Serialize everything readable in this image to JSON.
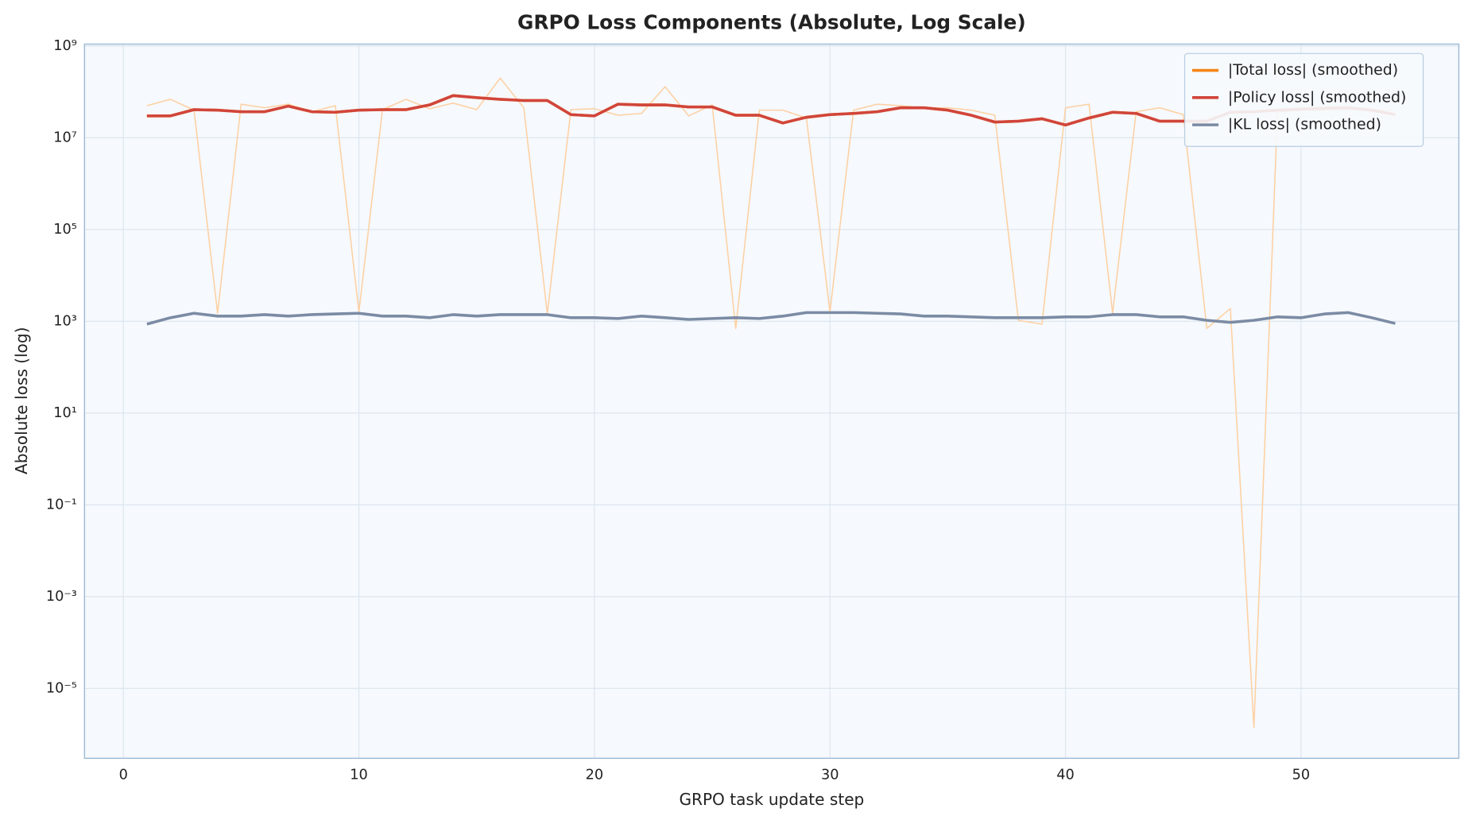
{
  "chart_data": {
    "type": "line",
    "title": "GRPO Loss Components (Absolute, Log Scale)",
    "x_label": "GRPO task update step",
    "y_label": "Absolute loss (log)",
    "yscale": "log",
    "grid": true,
    "legend": "upper right",
    "xlim": [
      -1.65,
      56.7
    ],
    "xticks": [
      0,
      10,
      20,
      30,
      40,
      50
    ],
    "ylim": [
      3e-07,
      1100000000.0
    ],
    "yticks": [
      {
        "value": 1e-05,
        "label": "10⁻⁵"
      },
      {
        "value": 0.001,
        "label": "10⁻³"
      },
      {
        "value": 0.1,
        "label": "10⁻¹"
      },
      {
        "value": 10,
        "label": "10¹"
      },
      {
        "value": 1000,
        "label": "10³"
      },
      {
        "value": 100000,
        "label": "10⁵"
      },
      {
        "value": 10000000,
        "label": "10⁷"
      },
      {
        "value": 1000000000,
        "label": "10⁹"
      }
    ],
    "x": [
      1,
      2,
      3,
      4,
      5,
      6,
      7,
      8,
      9,
      10,
      11,
      12,
      13,
      14,
      15,
      16,
      17,
      18,
      19,
      20,
      21,
      22,
      23,
      24,
      25,
      26,
      27,
      28,
      29,
      30,
      31,
      32,
      33,
      34,
      35,
      36,
      37,
      38,
      39,
      40,
      41,
      42,
      43,
      44,
      45,
      46,
      47,
      48,
      49,
      50,
      51,
      52,
      53,
      54
    ],
    "series": [
      {
        "color": "#fdd0a2",
        "width": 1.3,
        "values": [
          50000000.0,
          69000000.0,
          40000000.0,
          1500,
          54000000.0,
          45000000.0,
          54000000.0,
          37000000.0,
          50000000.0,
          1600,
          41000000.0,
          69000000.0,
          43000000.0,
          57000000.0,
          41000000.0,
          200000000.0,
          45000000.0,
          1450,
          41000000.0,
          43000000.0,
          31000000.0,
          34000000.0,
          130000000.0,
          30000000.0,
          52000000.0,
          700,
          40000000.0,
          40000000.0,
          27000000.0,
          1600,
          40000000.0,
          54000000.0,
          50000000.0,
          45000000.0,
          45000000.0,
          40000000.0,
          31000000.0,
          1050,
          870,
          45000000.0,
          54000000.0,
          1500,
          37000000.0,
          45000000.0,
          32000000.0,
          700,
          1900,
          1.4e-06,
          36000000.0,
          40000000.0,
          40000000.0,
          42000000.0,
          40000000.0,
          40000000.0
        ]
      },
      {
        "name": "|Total loss| (smoothed)",
        "color": "#f58518",
        "width": 3,
        "values": [
          30000000.0,
          30000000.0,
          41000000.0,
          40000000.0,
          37000000.0,
          37000000.0,
          49000000.0,
          37000000.0,
          36000000.0,
          40000000.0,
          41000000.0,
          41000000.0,
          52000000.0,
          83000000.0,
          75000000.0,
          69000000.0,
          65000000.0,
          65000000.0,
          32000000.0,
          30000000.0,
          54000000.0,
          52000000.0,
          52000000.0,
          47000000.0,
          47000000.0,
          31000000.0,
          31000000.0,
          21000000.0,
          28000000.0,
          32000000.0,
          34000000.0,
          37000000.0,
          45000000.0,
          45000000.0,
          40000000.0,
          31000000.0,
          22000000.0,
          23000000.0,
          26000000.0,
          19000000.0,
          27000000.0,
          36000000.0,
          34000000.0,
          23000000.0,
          23000000.0,
          23000000.0,
          36000000.0,
          37000000.0,
          40000000.0,
          42000000.0,
          44000000.0,
          45000000.0,
          40000000.0,
          32000000.0
        ]
      },
      {
        "name": "|Policy loss| (smoothed)",
        "color": "#d1453b",
        "width": 3,
        "values": [
          30000000.0,
          30000000.0,
          41000000.0,
          40000000.0,
          37000000.0,
          37000000.0,
          49000000.0,
          37000000.0,
          36000000.0,
          40000000.0,
          41000000.0,
          41000000.0,
          52000000.0,
          83000000.0,
          75000000.0,
          69000000.0,
          65000000.0,
          65000000.0,
          32000000.0,
          30000000.0,
          54000000.0,
          52000000.0,
          52000000.0,
          47000000.0,
          47000000.0,
          31000000.0,
          31000000.0,
          21000000.0,
          28000000.0,
          32000000.0,
          34000000.0,
          37000000.0,
          45000000.0,
          45000000.0,
          40000000.0,
          31000000.0,
          22000000.0,
          23000000.0,
          26000000.0,
          19000000.0,
          27000000.0,
          36000000.0,
          34000000.0,
          23000000.0,
          23000000.0,
          23000000.0,
          36000000.0,
          37000000.0,
          40000000.0,
          42000000.0,
          44000000.0,
          45000000.0,
          40000000.0,
          32000000.0
        ]
      },
      {
        "name": "|KL loss| (smoothed)",
        "color": "#7b8ba4",
        "width": 3,
        "values": [
          870,
          1200,
          1500,
          1300,
          1300,
          1400,
          1300,
          1400,
          1450,
          1500,
          1300,
          1300,
          1200,
          1400,
          1300,
          1400,
          1400,
          1400,
          1200,
          1200,
          1150,
          1300,
          1200,
          1100,
          1150,
          1200,
          1150,
          1300,
          1550,
          1550,
          1550,
          1500,
          1450,
          1300,
          1300,
          1250,
          1200,
          1200,
          1200,
          1250,
          1250,
          1400,
          1400,
          1250,
          1250,
          1050,
          950,
          1050,
          1250,
          1200,
          1450,
          1550,
          1200,
          900
        ]
      }
    ]
  }
}
